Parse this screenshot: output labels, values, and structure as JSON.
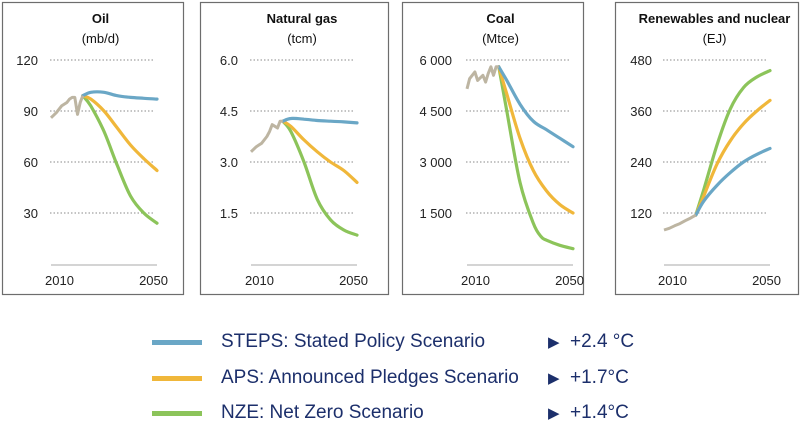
{
  "colors": {
    "history": "#bdb5a2",
    "STEPS": "#6aa7c6",
    "APS": "#f0b73a",
    "NZE": "#8cc45a",
    "text": "#1c2f6b"
  },
  "legend": [
    {
      "key": "STEPS",
      "label": "STEPS: Stated Policy Scenario",
      "arrow_icon": "triangle-right",
      "temp": "+2.4 °C"
    },
    {
      "key": "APS",
      "label": "APS: Announced Pledges Scenario",
      "arrow_icon": "triangle-right",
      "temp": "+1.7°C"
    },
    {
      "key": "NZE",
      "label": "NZE: Net Zero Scenario",
      "arrow_icon": "triangle-right",
      "temp": "+1.4°C"
    }
  ],
  "chart_data": [
    {
      "type": "line",
      "title": "Oil",
      "unit": "(mb/d)",
      "ylim": [
        0,
        120
      ],
      "yticks": [
        30,
        60,
        90,
        120
      ],
      "ytick_labels": [
        "30",
        "60",
        "90",
        "120"
      ],
      "xlim": [
        2010,
        2050
      ],
      "xtick_labels": [
        "2010",
        "2050"
      ],
      "grid": true,
      "history": {
        "x": [
          2010,
          2012,
          2014,
          2016,
          2017,
          2018,
          2019,
          2020,
          2021,
          2022
        ],
        "y": [
          86,
          89,
          93,
          95,
          97,
          98,
          98,
          88,
          95,
          99
        ]
      },
      "series": [
        {
          "key": "STEPS",
          "x": [
            2022,
            2025,
            2030,
            2035,
            2040,
            2045,
            2050
          ],
          "y": [
            99,
            101,
            101,
            99,
            98,
            97.5,
            97
          ]
        },
        {
          "key": "APS",
          "x": [
            2022,
            2025,
            2030,
            2035,
            2040,
            2045,
            2050
          ],
          "y": [
            99,
            97,
            90,
            80,
            70,
            62,
            55
          ]
        },
        {
          "key": "NZE",
          "x": [
            2022,
            2025,
            2030,
            2035,
            2040,
            2045,
            2050
          ],
          "y": [
            99,
            93,
            78,
            58,
            40,
            30,
            24
          ]
        }
      ]
    },
    {
      "type": "line",
      "title": "Natural gas",
      "unit": "(tcm)",
      "ylim": [
        0,
        6
      ],
      "yticks": [
        1.5,
        3,
        4.5,
        6
      ],
      "ytick_labels": [
        "1.5",
        "3.0",
        "4.5",
        "6.0"
      ],
      "xlim": [
        2010,
        2050
      ],
      "xtick_labels": [
        "2010",
        "2050"
      ],
      "grid": true,
      "history": {
        "x": [
          2010,
          2012,
          2013,
          2014,
          2016,
          2017,
          2018,
          2019,
          2020,
          2021,
          2022
        ],
        "y": [
          3.3,
          3.45,
          3.5,
          3.55,
          3.75,
          3.9,
          4.1,
          4.05,
          4.0,
          4.2,
          4.2
        ]
      },
      "series": [
        {
          "key": "STEPS",
          "x": [
            2022,
            2025,
            2030,
            2035,
            2040,
            2045,
            2050
          ],
          "y": [
            4.2,
            4.28,
            4.26,
            4.22,
            4.2,
            4.18,
            4.15
          ]
        },
        {
          "key": "APS",
          "x": [
            2022,
            2025,
            2030,
            2035,
            2040,
            2045,
            2050
          ],
          "y": [
            4.2,
            4.05,
            3.65,
            3.3,
            3.0,
            2.75,
            2.4
          ]
        },
        {
          "key": "NZE",
          "x": [
            2022,
            2025,
            2030,
            2035,
            2040,
            2045,
            2050
          ],
          "y": [
            4.2,
            3.9,
            3.0,
            1.9,
            1.3,
            1.0,
            0.85
          ]
        }
      ]
    },
    {
      "type": "line",
      "title": "Coal",
      "unit": "(Mtce)",
      "ylim": [
        0,
        6000
      ],
      "yticks": [
        1500,
        3000,
        4500,
        6000
      ],
      "ytick_labels": [
        "1 500",
        "3 000",
        "4 500",
        "6 000"
      ],
      "xlim": [
        2010,
        2050
      ],
      "xtick_labels": [
        "2010",
        "2050"
      ],
      "grid": true,
      "history": {
        "x": [
          2010,
          2011,
          2013,
          2014,
          2016,
          2017,
          2018,
          2019,
          2020,
          2021,
          2022
        ],
        "y": [
          5150,
          5450,
          5650,
          5400,
          5550,
          5350,
          5600,
          5800,
          5550,
          5800,
          5800
        ]
      },
      "series": [
        {
          "key": "STEPS",
          "x": [
            2022,
            2025,
            2030,
            2035,
            2040,
            2045,
            2050
          ],
          "y": [
            5800,
            5400,
            4700,
            4200,
            3950,
            3700,
            3450
          ]
        },
        {
          "key": "APS",
          "x": [
            2022,
            2025,
            2030,
            2035,
            2040,
            2045,
            2050
          ],
          "y": [
            5800,
            5000,
            3700,
            2750,
            2150,
            1750,
            1500
          ]
        },
        {
          "key": "NZE",
          "x": [
            2022,
            2025,
            2030,
            2035,
            2038,
            2040,
            2045,
            2050
          ],
          "y": [
            5800,
            4500,
            2400,
            1200,
            800,
            700,
            550,
            450
          ]
        }
      ]
    },
    {
      "type": "line",
      "title": "Renewables and nuclear",
      "unit": "(EJ)",
      "ylim": [
        0,
        480
      ],
      "yticks": [
        120,
        240,
        360,
        480
      ],
      "ytick_labels": [
        "120",
        "240",
        "360",
        "480"
      ],
      "xlim": [
        2010,
        2050
      ],
      "xtick_labels": [
        "2010",
        "2050"
      ],
      "grid": true,
      "history": {
        "x": [
          2010,
          2012,
          2014,
          2016,
          2018,
          2020,
          2022
        ],
        "y": [
          80,
          84,
          90,
          95,
          102,
          108,
          115
        ]
      },
      "series": [
        {
          "key": "STEPS",
          "x": [
            2022,
            2025,
            2030,
            2035,
            2040,
            2045,
            2050
          ],
          "y": [
            115,
            148,
            185,
            215,
            240,
            258,
            272
          ]
        },
        {
          "key": "APS",
          "x": [
            2022,
            2025,
            2030,
            2035,
            2040,
            2045,
            2050
          ],
          "y": [
            115,
            160,
            235,
            290,
            330,
            360,
            385
          ]
        },
        {
          "key": "NZE",
          "x": [
            2022,
            2025,
            2030,
            2035,
            2040,
            2045,
            2050
          ],
          "y": [
            115,
            175,
            280,
            365,
            415,
            440,
            455
          ]
        }
      ]
    }
  ]
}
